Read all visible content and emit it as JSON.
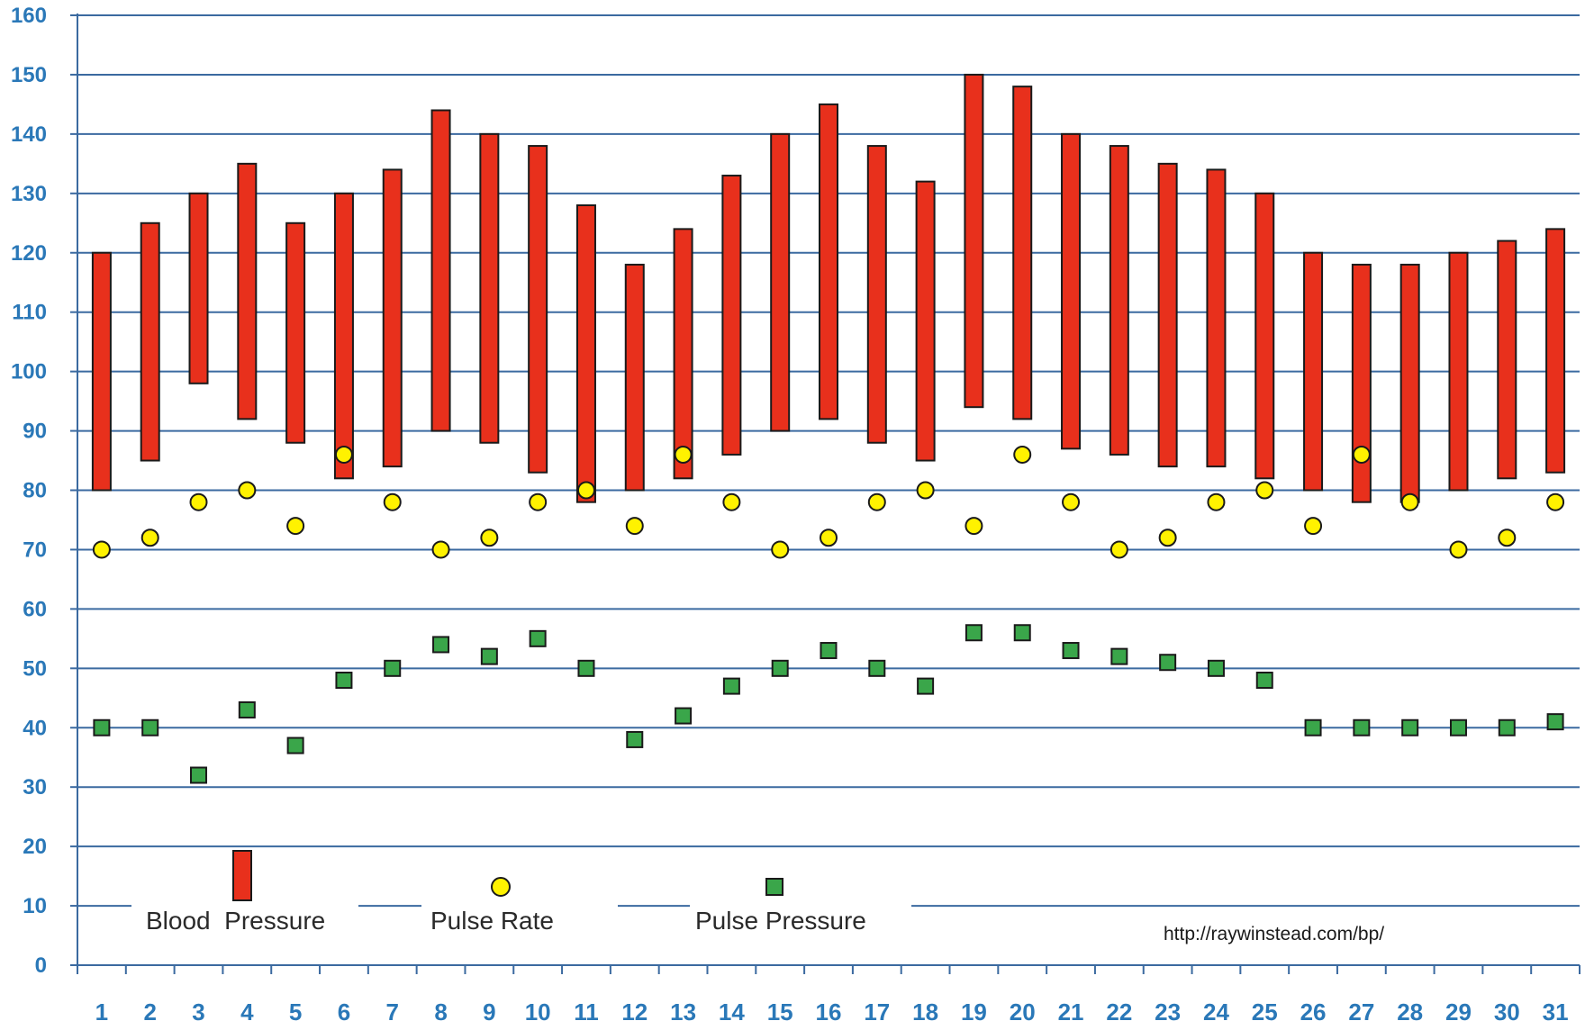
{
  "chart_data": {
    "type": "floating-bar-scatter",
    "x": [
      1,
      2,
      3,
      4,
      5,
      6,
      7,
      8,
      9,
      10,
      11,
      12,
      13,
      14,
      15,
      16,
      17,
      18,
      19,
      20,
      21,
      22,
      23,
      24,
      25,
      26,
      27,
      28,
      29,
      30,
      31
    ],
    "ylim": [
      0,
      160
    ],
    "yticks": [
      0,
      10,
      20,
      30,
      40,
      50,
      60,
      70,
      80,
      90,
      100,
      110,
      120,
      130,
      140,
      150,
      160
    ],
    "grid": true,
    "legend_placement": "bottom-inside",
    "series": [
      {
        "name": "Blood  Pressure",
        "kind": "range-bar",
        "color": "#e8301c",
        "high": [
          120,
          125,
          130,
          135,
          125,
          130,
          134,
          144,
          140,
          138,
          128,
          118,
          124,
          133,
          140,
          145,
          138,
          132,
          150,
          148,
          140,
          138,
          135,
          134,
          130,
          120,
          118,
          118,
          120,
          122,
          124
        ],
        "low": [
          80,
          85,
          98,
          92,
          88,
          82,
          84,
          90,
          88,
          83,
          78,
          80,
          82,
          86,
          90,
          92,
          88,
          85,
          94,
          92,
          87,
          86,
          84,
          84,
          82,
          80,
          78,
          78,
          80,
          82,
          83
        ]
      },
      {
        "name": "Pulse Rate",
        "kind": "circle-marker",
        "color": "#fff200",
        "values": [
          70,
          72,
          78,
          80,
          74,
          86,
          78,
          70,
          72,
          78,
          80,
          74,
          86,
          78,
          70,
          72,
          78,
          80,
          74,
          86,
          78,
          70,
          72,
          78,
          80,
          74,
          86,
          78,
          70,
          72,
          78
        ]
      },
      {
        "name": "Pulse Pressure",
        "kind": "square-marker",
        "color": "#3aa64a",
        "values": [
          40,
          40,
          32,
          43,
          37,
          48,
          50,
          54,
          52,
          55,
          50,
          38,
          42,
          47,
          50,
          53,
          50,
          47,
          56,
          56,
          53,
          52,
          51,
          50,
          48,
          40,
          40,
          40,
          40,
          40,
          41
        ]
      }
    ],
    "annotation": "http://raywinstead.com/bp/"
  },
  "colors": {
    "grid": "#3b6aa0",
    "axis": "#3b6aa0",
    "tick_label": "#2a78b8",
    "bar_fill": "#e8301c",
    "circle_fill": "#fff200",
    "square_fill": "#3aa64a"
  }
}
